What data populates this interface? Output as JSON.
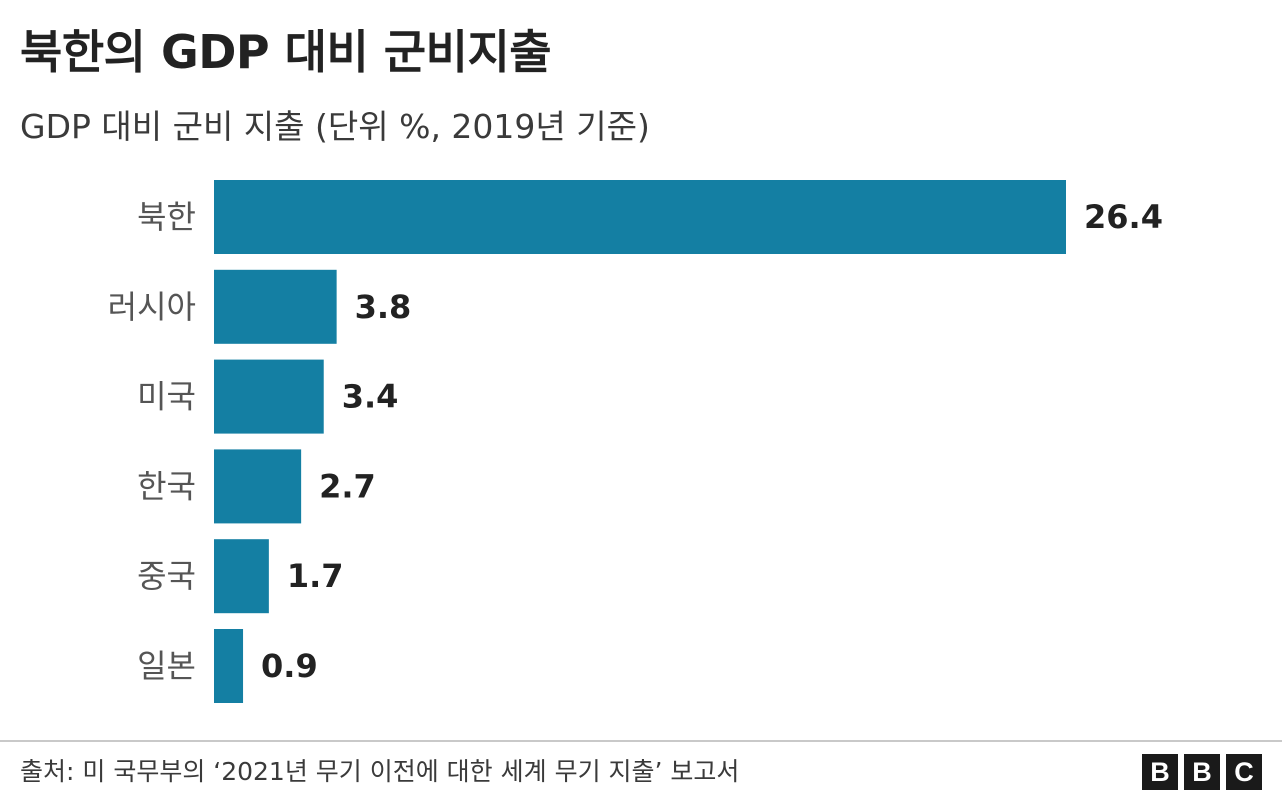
{
  "title": "북한의 GDP 대비 군비지출",
  "subtitle": "GDP 대비 군비 지출 (단위 %, 2019년 기준)",
  "source": "출처: 미 국무부의 ‘2021년 무기 이전에 대한 세계 무기 지출’ 보고서",
  "logo": {
    "letters": [
      "B",
      "B",
      "C"
    ]
  },
  "colors": {
    "bar": "#147fa3",
    "category_text": "#555555",
    "value_text": "#222222"
  },
  "chart_data": {
    "type": "bar",
    "orientation": "horizontal",
    "categories": [
      "북한",
      "러시아",
      "미국",
      "한국",
      "중국",
      "일본"
    ],
    "values": [
      26.4,
      3.8,
      3.4,
      2.7,
      1.7,
      0.9
    ],
    "value_labels": [
      "26.4",
      "3.8",
      "3.4",
      "2.7",
      "1.7",
      "0.9"
    ],
    "xlim": [
      0,
      26.4
    ],
    "grid": false,
    "legend": "none"
  }
}
